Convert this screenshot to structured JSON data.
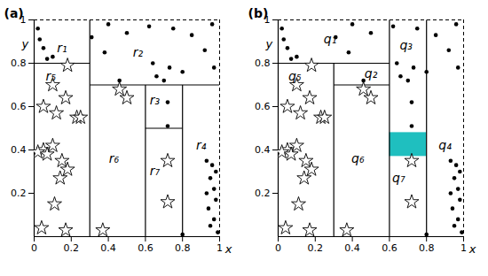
{
  "chart_data": [
    {
      "type": "scatter",
      "title": "(a)",
      "xlabel": "x",
      "ylabel": "y",
      "xlim": [
        0,
        1
      ],
      "ylim": [
        0,
        1
      ],
      "xticks": [
        0,
        0.2,
        0.4,
        0.6,
        0.8,
        1
      ],
      "yticks": [
        0.2,
        0.4,
        0.6,
        0.8,
        1
      ],
      "series": [
        {
          "marker": "circle",
          "color": "#000000",
          "x": [
            0.02,
            0.03,
            0.05,
            0.1,
            0.07,
            0.4,
            0.31,
            0.38,
            0.5,
            0.62,
            0.75,
            0.85,
            0.96,
            0.92,
            0.64,
            0.73,
            0.8,
            0.66,
            0.7,
            0.97,
            0.46,
            0.72,
            0.72,
            0.93,
            0.96,
            0.98,
            0.95,
            0.97,
            0.93,
            0.98,
            0.94,
            0.97,
            0.95,
            0.99,
            0.8
          ],
          "y": [
            0.96,
            0.91,
            0.87,
            0.83,
            0.82,
            0.98,
            0.92,
            0.85,
            0.94,
            0.97,
            0.96,
            0.93,
            0.98,
            0.86,
            0.8,
            0.78,
            0.76,
            0.74,
            0.72,
            0.78,
            0.72,
            0.62,
            0.51,
            0.35,
            0.33,
            0.3,
            0.27,
            0.22,
            0.2,
            0.17,
            0.13,
            0.08,
            0.05,
            0.02,
            0.01
          ]
        },
        {
          "marker": "star",
          "color": "#000000",
          "x": [
            0.18,
            0.1,
            0.05,
            0.17,
            0.12,
            0.23,
            0.25,
            0.05,
            0.02,
            0.07,
            0.1,
            0.15,
            0.18,
            0.14,
            0.11,
            0.04,
            0.17,
            0.46,
            0.5,
            0.37,
            0.72,
            0.72
          ],
          "y": [
            0.79,
            0.7,
            0.6,
            0.64,
            0.57,
            0.55,
            0.55,
            0.4,
            0.39,
            0.38,
            0.42,
            0.35,
            0.31,
            0.27,
            0.15,
            0.04,
            0.03,
            0.68,
            0.64,
            0.03,
            0.35,
            0.16
          ]
        }
      ],
      "lines": [
        {
          "x": [
            0.3,
            0.3
          ],
          "y": [
            0,
            1
          ]
        },
        {
          "x": [
            0,
            0.3
          ],
          "y": [
            0.8,
            0.8
          ]
        },
        {
          "x": [
            0.3,
            1
          ],
          "y": [
            0.7,
            0.7
          ]
        },
        {
          "x": [
            0.6,
            0.6
          ],
          "y": [
            0,
            0.7
          ]
        },
        {
          "x": [
            0.8,
            0.8
          ],
          "y": [
            0,
            0.7
          ]
        },
        {
          "x": [
            0.6,
            0.8
          ],
          "y": [
            0.5,
            0.5
          ]
        }
      ],
      "annotations": [
        {
          "text": "r₁",
          "x": 0.15,
          "y": 0.87
        },
        {
          "text": "r₂",
          "x": 0.56,
          "y": 0.85
        },
        {
          "text": "r₃",
          "x": 0.65,
          "y": 0.63
        },
        {
          "text": "r₄",
          "x": 0.9,
          "y": 0.42
        },
        {
          "text": "r₅",
          "x": 0.09,
          "y": 0.74
        },
        {
          "text": "r₆",
          "x": 0.43,
          "y": 0.36
        },
        {
          "text": "r₇",
          "x": 0.65,
          "y": 0.3
        }
      ]
    },
    {
      "type": "scatter",
      "title": "(b)",
      "xlabel": "x",
      "ylabel": "y",
      "xlim": [
        0,
        1
      ],
      "ylim": [
        0,
        1
      ],
      "xticks": [
        0,
        0.2,
        0.4,
        0.6,
        0.8,
        1
      ],
      "yticks": [
        0.2,
        0.4,
        0.6,
        0.8,
        1
      ],
      "series": [
        {
          "marker": "circle",
          "color": "#000000",
          "x": [
            0.02,
            0.03,
            0.05,
            0.1,
            0.07,
            0.4,
            0.31,
            0.38,
            0.5,
            0.62,
            0.75,
            0.85,
            0.96,
            0.92,
            0.64,
            0.73,
            0.8,
            0.66,
            0.7,
            0.97,
            0.46,
            0.72,
            0.72,
            0.93,
            0.96,
            0.98,
            0.95,
            0.97,
            0.93,
            0.98,
            0.94,
            0.97,
            0.95,
            0.99,
            0.8
          ],
          "y": [
            0.96,
            0.91,
            0.87,
            0.83,
            0.82,
            0.98,
            0.92,
            0.85,
            0.94,
            0.97,
            0.96,
            0.93,
            0.98,
            0.86,
            0.8,
            0.78,
            0.76,
            0.74,
            0.72,
            0.78,
            0.72,
            0.62,
            0.51,
            0.35,
            0.33,
            0.3,
            0.27,
            0.22,
            0.2,
            0.17,
            0.13,
            0.08,
            0.05,
            0.02,
            0.01
          ]
        },
        {
          "marker": "star",
          "color": "#000000",
          "x": [
            0.18,
            0.1,
            0.05,
            0.17,
            0.12,
            0.23,
            0.25,
            0.05,
            0.02,
            0.07,
            0.1,
            0.15,
            0.18,
            0.14,
            0.11,
            0.04,
            0.17,
            0.46,
            0.5,
            0.37,
            0.72,
            0.72
          ],
          "y": [
            0.79,
            0.7,
            0.6,
            0.64,
            0.57,
            0.55,
            0.55,
            0.4,
            0.39,
            0.38,
            0.42,
            0.35,
            0.31,
            0.27,
            0.15,
            0.04,
            0.03,
            0.68,
            0.64,
            0.03,
            0.35,
            0.16
          ]
        }
      ],
      "highlight": {
        "x": [
          0.6,
          0.8
        ],
        "y": [
          0.37,
          0.48
        ],
        "color": "#1fbfbf"
      },
      "lines": [
        {
          "x": [
            0,
            0.6
          ],
          "y": [
            0.8,
            0.8
          ]
        },
        {
          "x": [
            0.3,
            0.3
          ],
          "y": [
            0,
            0.8
          ]
        },
        {
          "x": [
            0.3,
            0.6
          ],
          "y": [
            0.7,
            0.7
          ]
        },
        {
          "x": [
            0.6,
            0.6
          ],
          "y": [
            0,
            1
          ]
        },
        {
          "x": [
            0.8,
            0.8
          ],
          "y": [
            0,
            1
          ]
        }
      ],
      "annotations": [
        {
          "text": "q₁",
          "x": 0.28,
          "y": 0.91
        },
        {
          "text": "q₂",
          "x": 0.5,
          "y": 0.75
        },
        {
          "text": "q₃",
          "x": 0.69,
          "y": 0.88
        },
        {
          "text": "q₄",
          "x": 0.9,
          "y": 0.42
        },
        {
          "text": "q₅",
          "x": 0.09,
          "y": 0.74
        },
        {
          "text": "q₆",
          "x": 0.43,
          "y": 0.36
        },
        {
          "text": "q₇",
          "x": 0.65,
          "y": 0.27
        }
      ]
    }
  ]
}
